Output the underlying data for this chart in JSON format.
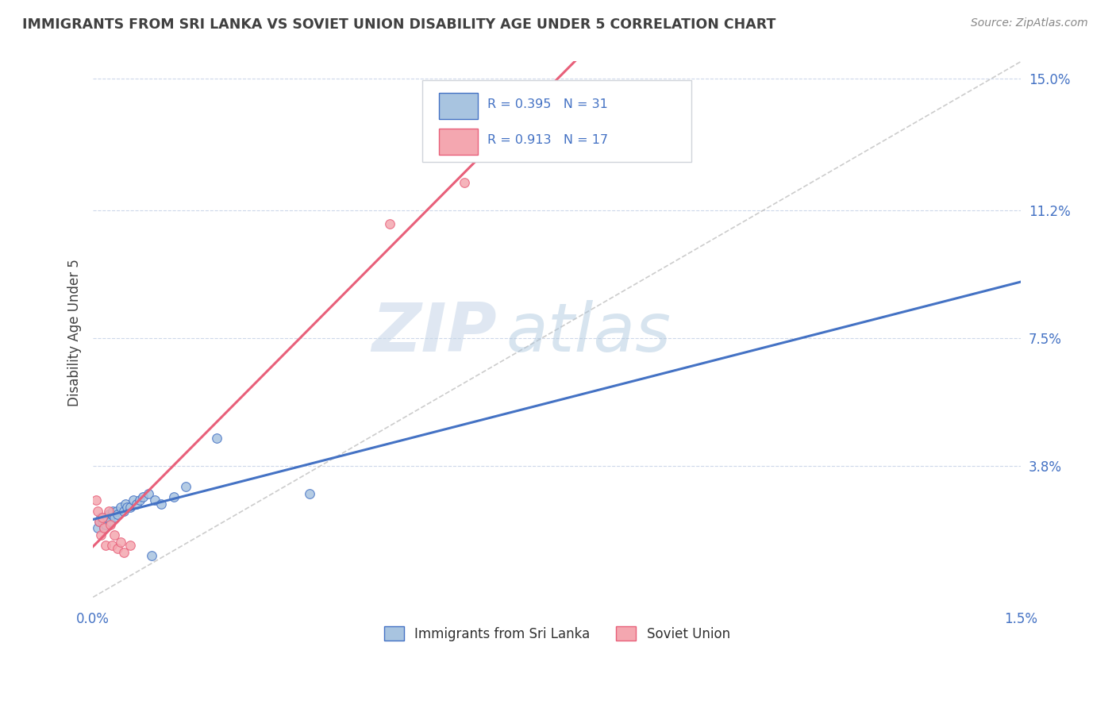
{
  "title": "IMMIGRANTS FROM SRI LANKA VS SOVIET UNION DISABILITY AGE UNDER 5 CORRELATION CHART",
  "source": "Source: ZipAtlas.com",
  "ylabel": "Disability Age Under 5",
  "legend_labels": [
    "Immigrants from Sri Lanka",
    "Soviet Union"
  ],
  "sri_lanka_R": "0.395",
  "sri_lanka_N": "31",
  "soviet_R": "0.913",
  "soviet_N": "17",
  "xlim": [
    0.0,
    0.015
  ],
  "ylim": [
    -0.002,
    0.155
  ],
  "yticks": [
    0.0,
    0.038,
    0.075,
    0.112,
    0.15
  ],
  "ytick_labels": [
    "",
    "3.8%",
    "7.5%",
    "11.2%",
    "15.0%"
  ],
  "xticks": [
    0.0,
    0.015
  ],
  "xtick_labels": [
    "0.0%",
    "1.5%"
  ],
  "sri_lanka_color": "#a8c4e0",
  "soviet_color": "#f4a7b0",
  "sri_lanka_line_color": "#4472c4",
  "soviet_line_color": "#e8607a",
  "ref_line_color": "#c0c0c0",
  "watermark_zip": "ZIP",
  "watermark_atlas": "atlas",
  "background_color": "#ffffff",
  "grid_color": "#c8d4e8",
  "title_color": "#404040",
  "axis_tick_color": "#4472c4",
  "legend_text_color": "#303030",
  "legend_R_color": "#4472c4",
  "sri_lanka_x": [
    8e-05,
    0.0001,
    0.00012,
    0.00015,
    0.00018,
    0.0002,
    0.00022,
    0.00025,
    0.00028,
    0.0003,
    0.00032,
    0.00035,
    0.00038,
    0.0004,
    0.00045,
    0.0005,
    0.00052,
    0.00055,
    0.0006,
    0.00065,
    0.0007,
    0.00075,
    0.0008,
    0.0009,
    0.00095,
    0.001,
    0.0011,
    0.0013,
    0.0015,
    0.002,
    0.0035
  ],
  "sri_lanka_y": [
    0.02,
    0.022,
    0.023,
    0.022,
    0.02,
    0.021,
    0.023,
    0.024,
    0.022,
    0.024,
    0.025,
    0.023,
    0.025,
    0.024,
    0.026,
    0.025,
    0.027,
    0.026,
    0.026,
    0.028,
    0.027,
    0.028,
    0.029,
    0.03,
    0.012,
    0.028,
    0.027,
    0.029,
    0.032,
    0.046,
    0.03
  ],
  "soviet_x": [
    5e-05,
    8e-05,
    0.0001,
    0.00012,
    0.00015,
    0.00018,
    0.0002,
    0.00025,
    0.00028,
    0.0003,
    0.00035,
    0.0004,
    0.00045,
    0.0005,
    0.0006,
    0.0048,
    0.006
  ],
  "soviet_y": [
    0.028,
    0.025,
    0.022,
    0.018,
    0.023,
    0.02,
    0.015,
    0.025,
    0.021,
    0.015,
    0.018,
    0.014,
    0.016,
    0.013,
    0.015,
    0.108,
    0.12
  ]
}
